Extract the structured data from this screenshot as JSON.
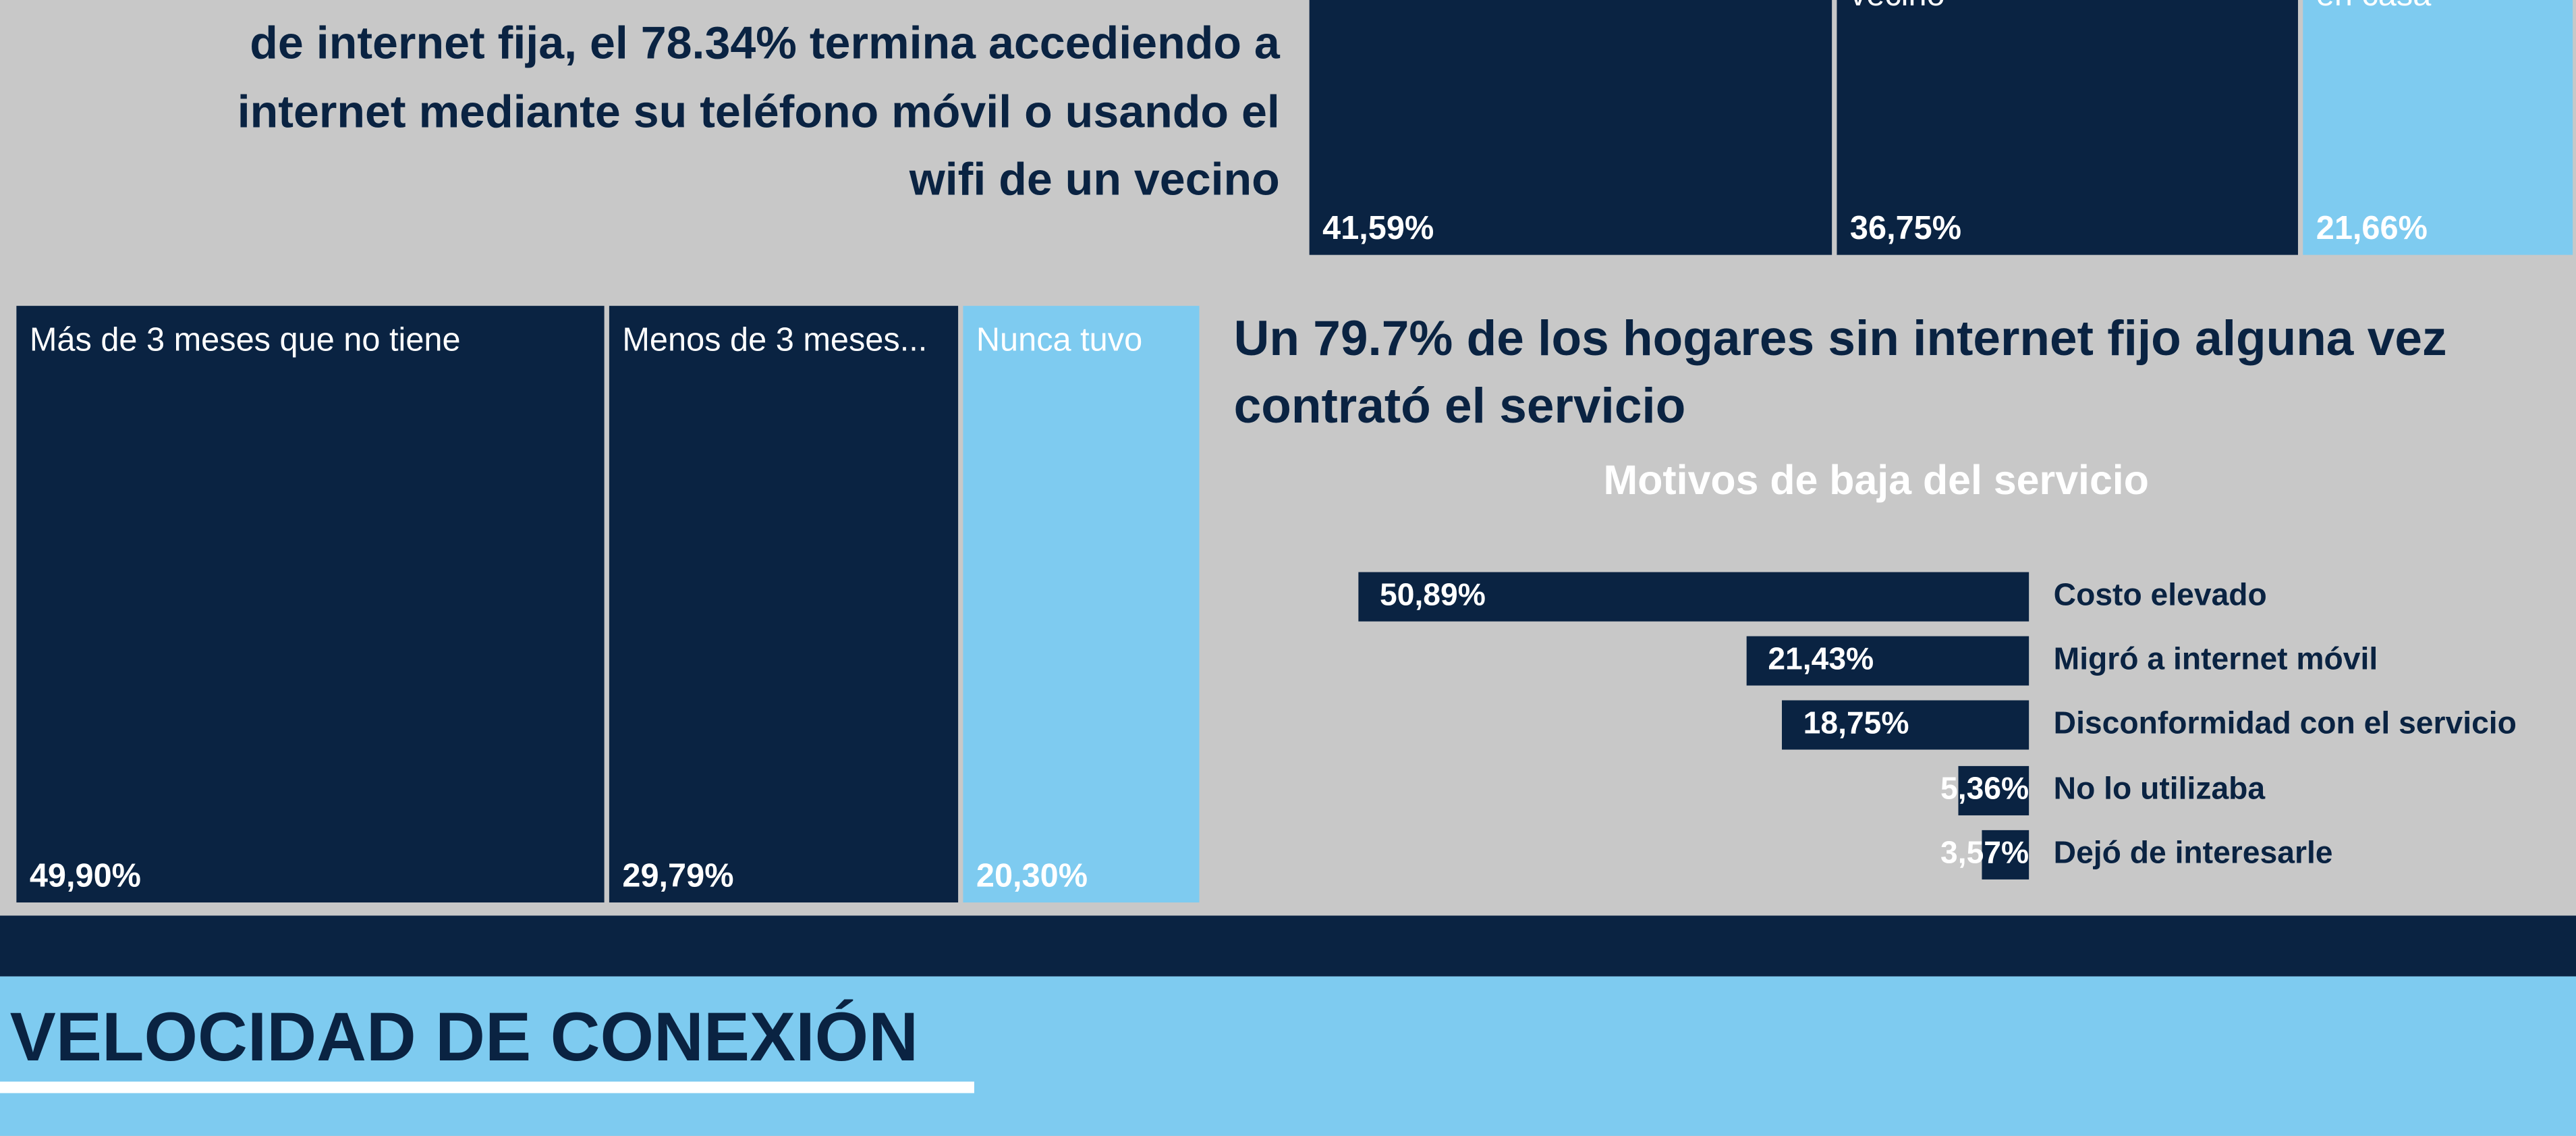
{
  "text_block": {
    "lines": [
      "de internet fija, el 78.34% termina accediendo a",
      "internet mediante su teléfono móvil o usando el",
      "wifi de un vecino"
    ]
  },
  "treemap_top": {
    "type": "treemap",
    "categories": [
      null,
      "vecino",
      "en casa"
    ],
    "values": [
      41.59,
      36.75,
      21.66
    ],
    "value_labels": [
      "41,59%",
      "36,75%",
      "21,66%"
    ],
    "colors": [
      "#0a2342",
      "#0a2342",
      "#7ecbf0"
    ]
  },
  "treemap_bottom": {
    "type": "treemap",
    "categories": [
      "Más de 3 meses que no tiene",
      "Menos de 3 meses...",
      "Nunca tuvo"
    ],
    "values": [
      49.9,
      29.79,
      20.3
    ],
    "value_labels": [
      "49,90%",
      "29,79%",
      "20,30%"
    ],
    "colors": [
      "#0a2342",
      "#0a2342",
      "#7ecbf0"
    ]
  },
  "heading": {
    "lines": [
      "Un 79.7% de los hogares sin internet fijo alguna vez",
      "contrató el servicio"
    ]
  },
  "chart_data": {
    "type": "bar",
    "orientation": "horizontal",
    "title": "Motivos de baja del servicio",
    "categories": [
      "Costo elevado",
      "Migró a internet móvil",
      "Disconformidad con el servicio",
      "No lo utilizaba",
      "Dejó de interesarle"
    ],
    "values": [
      50.89,
      21.43,
      18.75,
      5.36,
      3.57
    ],
    "value_labels": [
      "50,89%",
      "21,43%",
      "18,75%",
      "5,36%",
      "3,57%"
    ],
    "color": "#0a2342"
  },
  "section_title": "VELOCIDAD DE CONEXIÓN"
}
